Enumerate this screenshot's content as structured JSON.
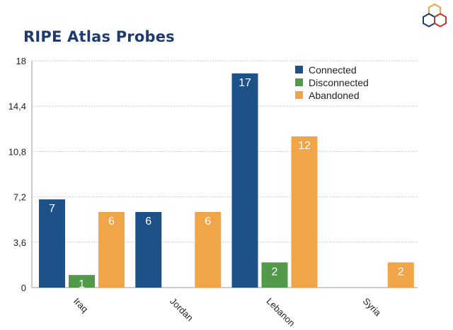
{
  "chart_data": {
    "type": "bar",
    "title": "RIPE Atlas Probes",
    "categories": [
      "Iraq",
      "Jordan",
      "Lebanon",
      "Syria"
    ],
    "series": [
      {
        "name": "Connected",
        "color": "#1f5189",
        "values": [
          7,
          6,
          17,
          0
        ]
      },
      {
        "name": "Disconnected",
        "color": "#53994a",
        "values": [
          1,
          0,
          2,
          0
        ]
      },
      {
        "name": "Abandoned",
        "color": "#f0a548",
        "values": [
          6,
          6,
          12,
          2
        ]
      }
    ],
    "y_ticks": [
      "0",
      "3,6",
      "7,2",
      "10,8",
      "14,4",
      "18"
    ],
    "ylim": [
      0,
      18
    ],
    "grid": true,
    "legend_position": "top-right"
  }
}
